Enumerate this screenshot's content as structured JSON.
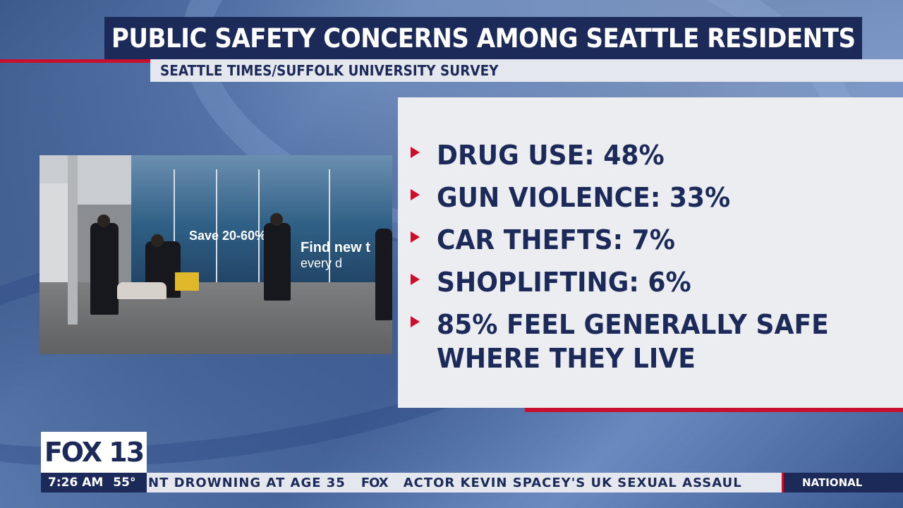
{
  "header": {
    "title": "PUBLIC SAFETY CONCERNS AMONG SEATTLE RESIDENTS",
    "subtitle": "SEATTLE TIMES/SUFFOLK UNIVERSITY SURVEY"
  },
  "photo": {
    "sign_save": "Save 20-60%",
    "sign_new": "Find new t",
    "sign_every": "every d"
  },
  "findings": [
    {
      "line1": "DRUG USE: 48%"
    },
    {
      "line1": "GUN VIOLENCE: 33%"
    },
    {
      "line1": "CAR THEFTS: 7%"
    },
    {
      "line1": "SHOPLIFTING: 6%"
    },
    {
      "line1": "85% FEEL GENERALLY SAFE",
      "line2": "WHERE THEY LIVE"
    }
  ],
  "logo": {
    "text": "FOX 13"
  },
  "ticker": {
    "time": "7:26 AM",
    "temp": "55°",
    "headline_left": "NT DROWNING AT AGE 35",
    "separator": "FOX",
    "headline_right": "ACTOR KEVIN SPACEY'S UK SEXUAL ASSAUL",
    "category": "NATIONAL"
  },
  "colors": {
    "navy": "#1c2a5a",
    "accent_red": "#c8102e",
    "panel": "#ecedf0"
  }
}
